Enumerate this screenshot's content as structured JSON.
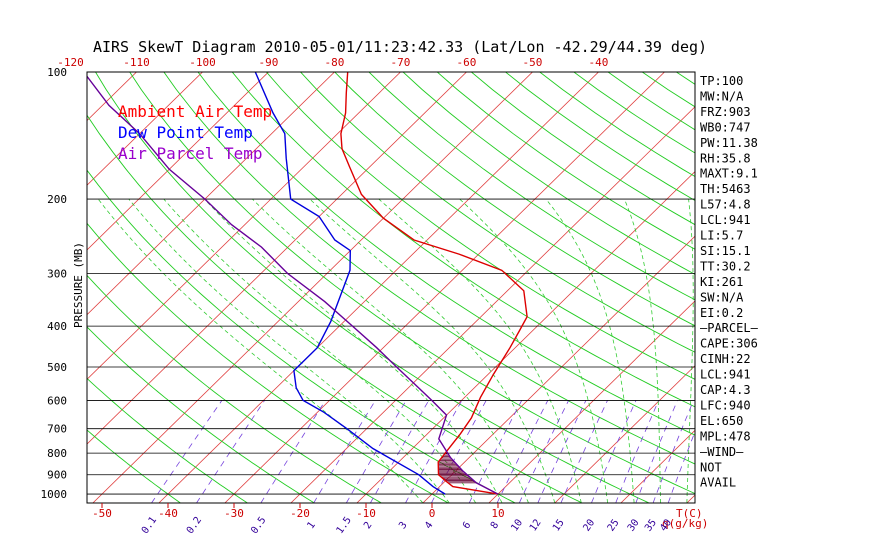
{
  "chart_data": {
    "type": "line",
    "title": "AIRS SkewT Diagram 2010-05-01/11:23:42.33 (Lat/Lon -42.29/44.39 deg)",
    "ylabel": "PRESSURE (MB)",
    "xlabel": "T(C)",
    "mixing_ratio_unit": "q(g/kg)",
    "yscale": "log",
    "ylim": [
      1050,
      100
    ],
    "xlim_bottom": [
      -53,
      12
    ],
    "pressure_ticks": [
      100,
      200,
      300,
      400,
      500,
      600,
      700,
      800,
      900,
      1000
    ],
    "temp_ticks_bottom": [
      -50,
      -40,
      -30,
      -20,
      -10,
      0,
      10
    ],
    "temp_ticks_top": [
      -120,
      -110,
      -100,
      -90,
      -80,
      -70,
      -60,
      -50,
      -40
    ],
    "mixing_ratio_labels": [
      "0.1",
      "0.2",
      "0.5",
      "1",
      "1.5",
      "2",
      "3",
      "4",
      "6",
      "8",
      "10",
      "12",
      "15",
      "20",
      "25",
      "30",
      "35",
      "40"
    ],
    "legend": [
      {
        "name": "Ambient Air Temp",
        "color": "#ff0000"
      },
      {
        "name": "Dew Point Temp",
        "color": "#0000ff"
      },
      {
        "name": "Air Parcel Temp",
        "color": "#9900cc"
      }
    ],
    "series": [
      {
        "name": "Ambient Air Temp",
        "color": "#dd0000",
        "points": [
          [
            1000,
            10.0
          ],
          [
            960,
            2.0
          ],
          [
            930,
            0.0
          ],
          [
            900,
            -2.0
          ],
          [
            840,
            -4.0
          ],
          [
            790,
            -4.4
          ],
          [
            720,
            -5.0
          ],
          [
            660,
            -5.8
          ],
          [
            590,
            -7.6
          ],
          [
            520,
            -9.2
          ],
          [
            450,
            -10.8
          ],
          [
            410,
            -12.0
          ],
          [
            380,
            -13.0
          ],
          [
            330,
            -17.5
          ],
          [
            295,
            -24.0
          ],
          [
            270,
            -33.0
          ],
          [
            250,
            -42.0
          ],
          [
            222,
            -50.0
          ],
          [
            195,
            -57.0
          ],
          [
            168,
            -63.0
          ],
          [
            152,
            -67.0
          ],
          [
            140,
            -69.5
          ],
          [
            125,
            -72.0
          ],
          [
            112,
            -75.0
          ],
          [
            100,
            -78.0
          ]
        ]
      },
      {
        "name": "Dew Point Temp",
        "color": "#0000dd",
        "points": [
          [
            1000,
            2.0
          ],
          [
            960,
            -1.0
          ],
          [
            900,
            -5.0
          ],
          [
            780,
            -16.0
          ],
          [
            700,
            -23.0
          ],
          [
            640,
            -29.0
          ],
          [
            600,
            -34.0
          ],
          [
            560,
            -37.0
          ],
          [
            510,
            -40.0
          ],
          [
            450,
            -40.0
          ],
          [
            390,
            -42.0
          ],
          [
            330,
            -45.0
          ],
          [
            295,
            -47.0
          ],
          [
            265,
            -50.0
          ],
          [
            250,
            -54.0
          ],
          [
            220,
            -60.0
          ],
          [
            200,
            -67.0
          ],
          [
            160,
            -74.0
          ],
          [
            140,
            -78.0
          ],
          [
            125,
            -83.0
          ],
          [
            100,
            -92.0
          ]
        ]
      },
      {
        "name": "Air Parcel Temp",
        "color": "#660099",
        "points": [
          [
            1000,
            10.0
          ],
          [
            941,
            5.0
          ],
          [
            880,
            1.0
          ],
          [
            820,
            -2.8
          ],
          [
            740,
            -7.5
          ],
          [
            650,
            -10.0
          ],
          [
            600,
            -14.5
          ],
          [
            550,
            -19.5
          ],
          [
            500,
            -25.0
          ],
          [
            450,
            -31.0
          ],
          [
            400,
            -38.0
          ],
          [
            350,
            -46.0
          ],
          [
            300,
            -56.0
          ],
          [
            260,
            -64.0
          ],
          [
            230,
            -72.0
          ],
          [
            200,
            -80.0
          ],
          [
            170,
            -90.0
          ],
          [
            140,
            -100.0
          ],
          [
            120,
            -109.0
          ],
          [
            100,
            -118.0
          ]
        ]
      }
    ],
    "cape_shading": {
      "from_pressure": 941,
      "to_pressure": 650
    }
  },
  "side_panel": [
    "TP:100",
    "MW:N/A",
    "FRZ:903",
    "WB0:747",
    "PW:11.38",
    "RH:35.8",
    "MAXT:9.1",
    "TH:5463",
    "L57:4.8",
    "LCL:941",
    "LI:5.7",
    "SI:15.1",
    "TT:30.2",
    "KI:261",
    "SW:N/A",
    "EI:0.2",
    "—PARCEL—",
    "CAPE:306",
    "CINH:22",
    "LCL:941",
    "CAP:4.3",
    "LFC:940",
    "EL:650",
    "MPL:478",
    "—WIND—",
    "NOT",
    "AVAIL"
  ],
  "colors": {
    "isotherm": "#e04040",
    "dry_adiabat": "#22cc22",
    "moist_adiabat": "#33cc33",
    "mixing_ratio": "#7744dd",
    "isobar": "#000000",
    "axis_label": "#cc0000"
  }
}
